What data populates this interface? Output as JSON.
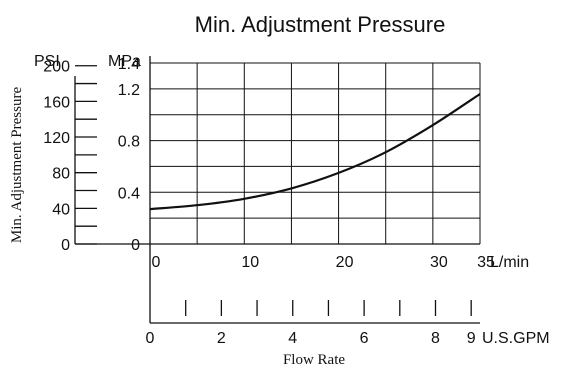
{
  "chart_data": {
    "type": "line",
    "title": "Min. Adjustment Pressure",
    "ylabel": "Min. Adjustment Pressure",
    "xlabel": "Flow Rate",
    "x_unit_primary": "L/min",
    "x_unit_secondary": "U.S.GPM",
    "y_unit_psi": "PSI",
    "y_unit_mpa": "MPa",
    "xlim": [
      0,
      35
    ],
    "ylim": [
      0,
      1.4
    ],
    "x_ticks": [
      "0",
      "10",
      "20",
      "30",
      "35"
    ],
    "gpm_ticks": [
      "0",
      "2",
      "4",
      "6",
      "8",
      "9"
    ],
    "psi_ticks": [
      "0",
      "40",
      "80",
      "120",
      "160",
      "200"
    ],
    "mpa_ticks": [
      "0",
      "0.4",
      "0.8",
      "1.2",
      "1.4"
    ],
    "grid": true,
    "series": [
      {
        "x": [
          0,
          5,
          10,
          15,
          20,
          25,
          30,
          35
        ],
        "y": [
          0.27,
          0.3,
          0.35,
          0.43,
          0.55,
          0.71,
          0.92,
          1.16
        ]
      }
    ]
  }
}
